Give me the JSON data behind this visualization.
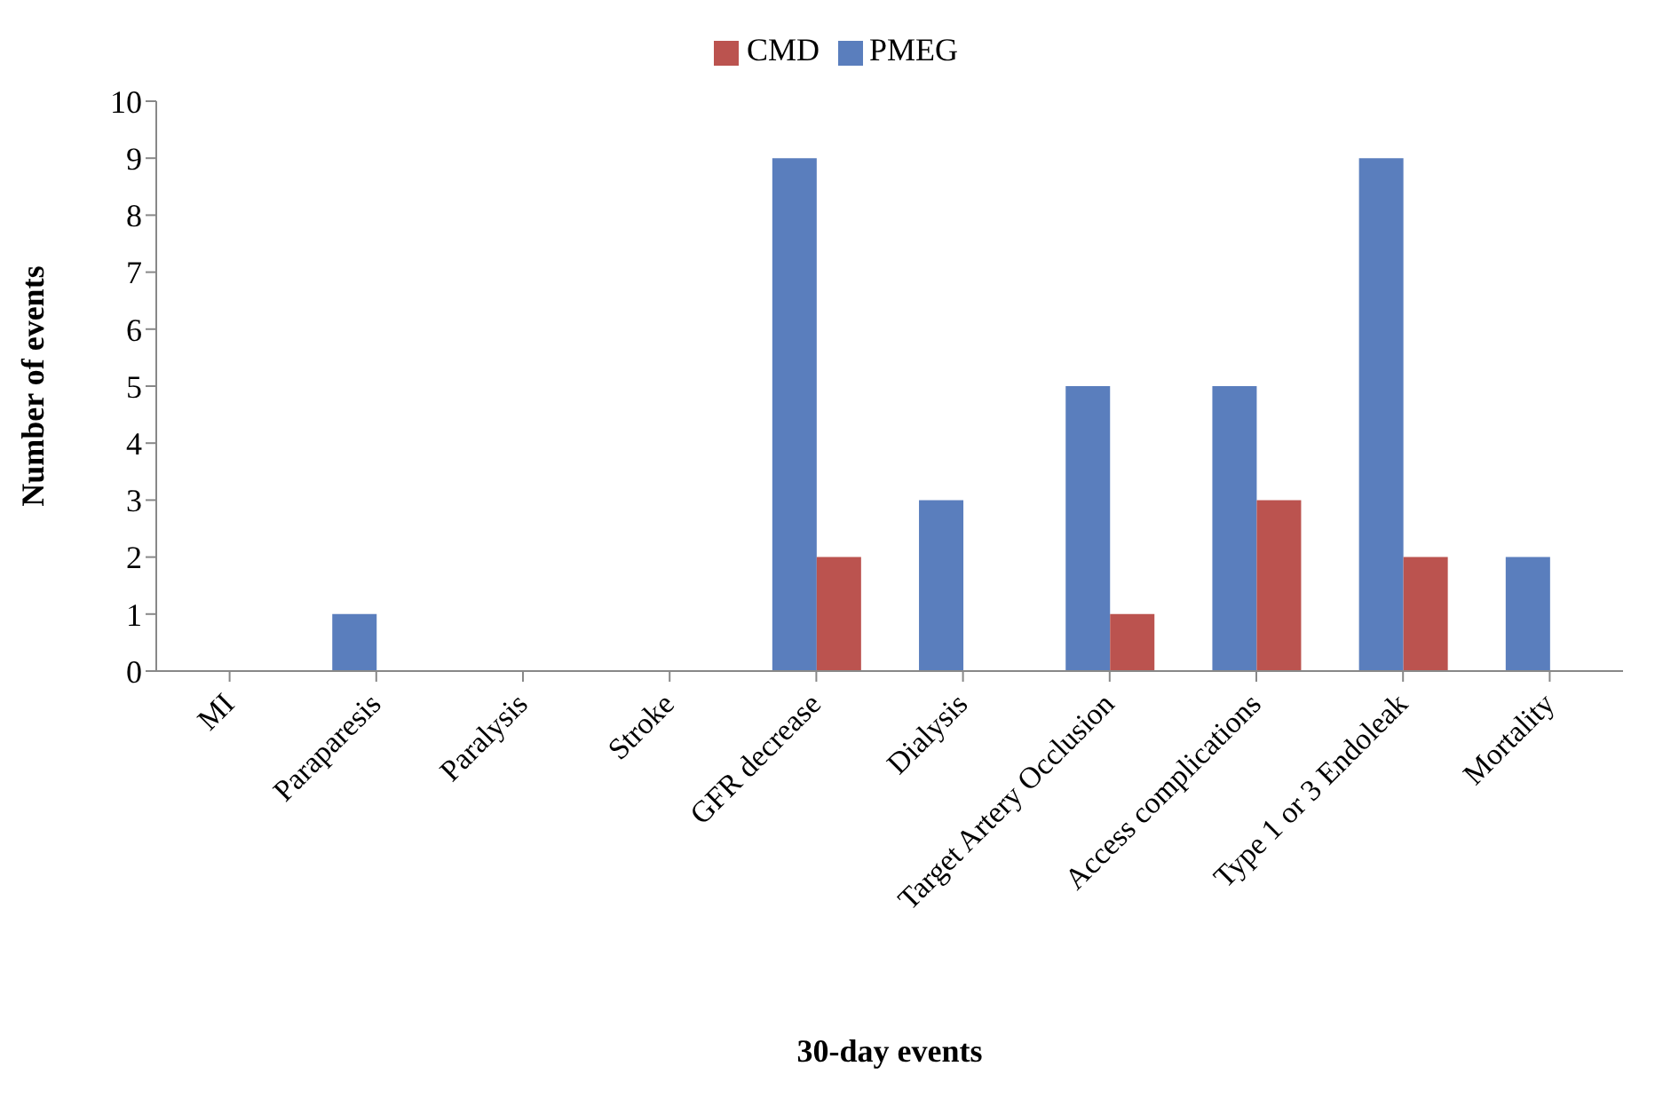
{
  "chart_data": {
    "type": "bar",
    "xlabel": "30-day events",
    "ylabel": "Number of events",
    "categories": [
      "MI",
      "Paraparesis",
      "Paralysis",
      "Stroke",
      "GFR decrease",
      "Dialysis",
      "Target Artery Occlusion",
      "Access complications",
      "Type 1 or 3 Endoleak",
      "Mortality"
    ],
    "series": [
      {
        "name": "PMEG",
        "color": "#5a7ebd",
        "values": [
          0,
          1,
          0,
          0,
          9,
          3,
          5,
          5,
          9,
          2
        ]
      },
      {
        "name": "CMD",
        "color": "#bb534f",
        "values": [
          0,
          0,
          0,
          0,
          2,
          0,
          1,
          3,
          2,
          0
        ]
      }
    ],
    "ylim": [
      0,
      10
    ],
    "yticks": [
      0,
      1,
      2,
      3,
      4,
      5,
      6,
      7,
      8,
      9,
      10
    ],
    "grid": false,
    "legend": "top"
  }
}
